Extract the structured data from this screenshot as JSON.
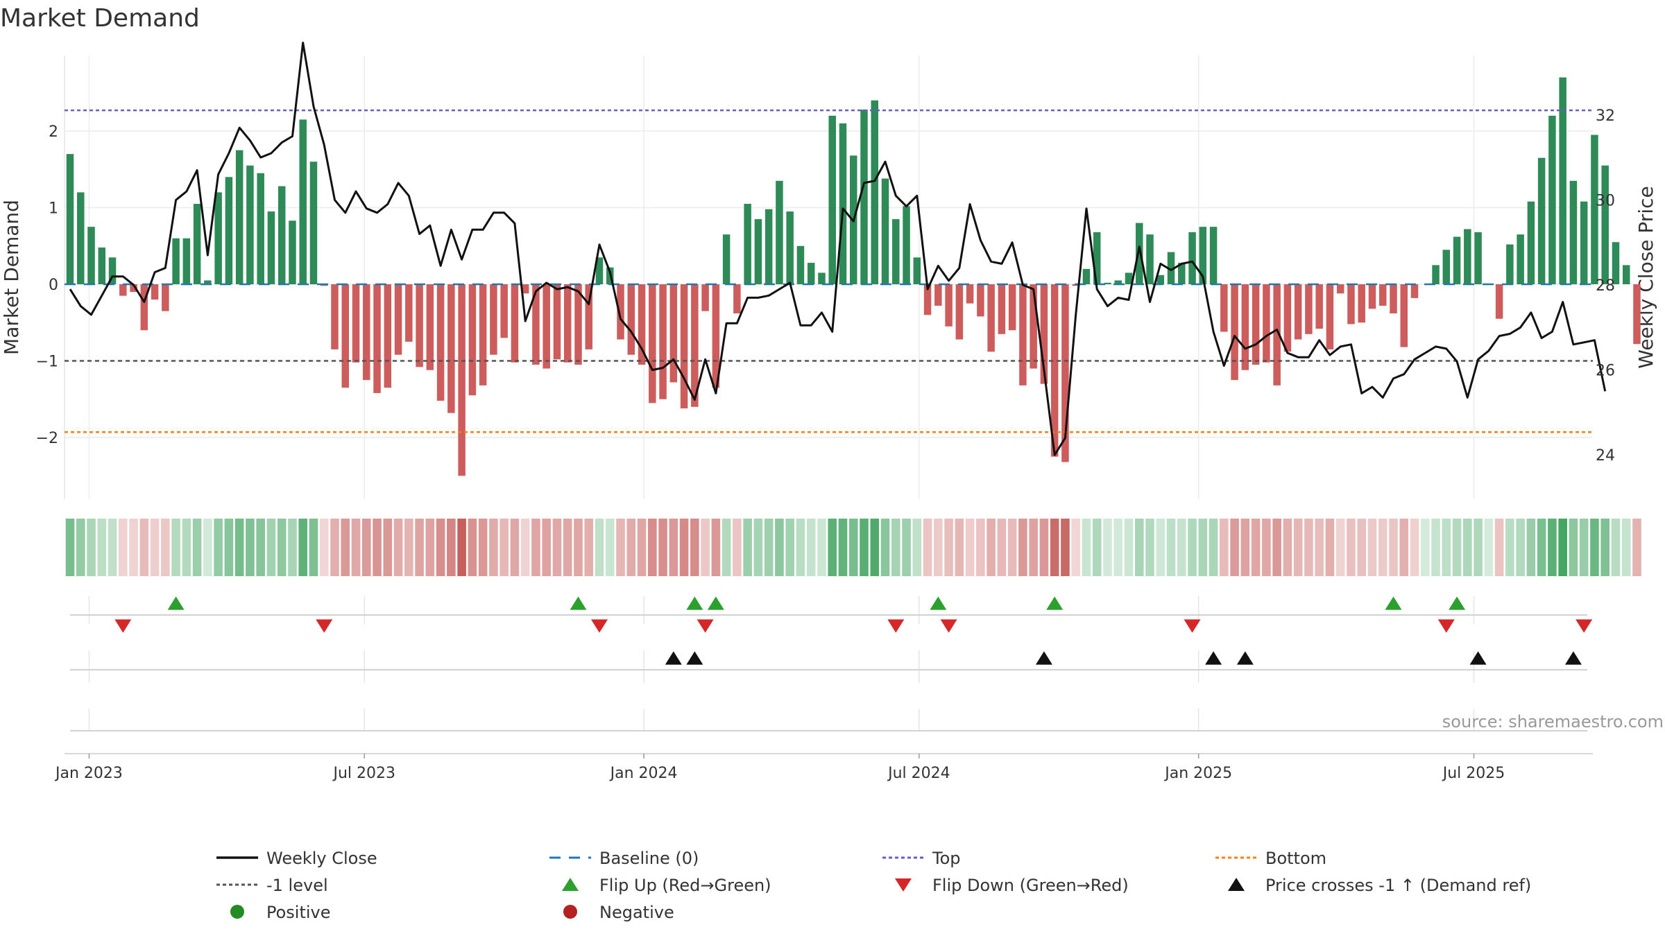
{
  "chart_data": {
    "type": "bar",
    "title": "Market Demand",
    "ylabel": "Market Demand",
    "ylabel_right": "Weekly Close Price",
    "ylim": [
      -2.8,
      2.9
    ],
    "ylim_right": [
      23.5,
      33.9
    ],
    "yticks": [
      "2",
      "1",
      "0",
      "−1",
      "−2"
    ],
    "yticks_values": [
      2,
      1,
      0,
      -1,
      -2
    ],
    "yticks_right": [
      "32",
      "30",
      "28",
      "26",
      "24"
    ],
    "yticks_right_values": [
      32,
      30,
      28,
      26,
      24
    ],
    "x_tick_labels": [
      "Jan 2023",
      "Jul 2023",
      "Jan 2024",
      "Jul 2024",
      "Jan 2025",
      "Jul 2025"
    ],
    "x_tick_weeks": [
      1.8,
      27.8,
      54.2,
      80.2,
      106.6,
      132.6
    ],
    "reference_lines": [
      {
        "name": "Baseline (0)",
        "value": 0,
        "color": "#1f77b4"
      },
      {
        "name": "Top",
        "value": 2.27,
        "color": "#6a5acd"
      },
      {
        "name": "-1 level",
        "value": -1,
        "color": "#555555"
      },
      {
        "name": "Bottom",
        "value": -1.93,
        "color": "#ff7f0e"
      }
    ],
    "demand": [
      1.7,
      1.2,
      0.75,
      0.48,
      0.35,
      -0.15,
      -0.1,
      -0.6,
      -0.2,
      -0.35,
      0.6,
      0.6,
      1.05,
      0.05,
      1.2,
      1.4,
      1.75,
      1.55,
      1.45,
      0.95,
      1.28,
      0.83,
      2.15,
      1.6,
      -0.02,
      -0.85,
      -1.35,
      -1.02,
      -1.25,
      -1.42,
      -1.35,
      -0.92,
      -0.75,
      -1.08,
      -1.12,
      -1.52,
      -1.68,
      -2.5,
      -1.45,
      -1.32,
      -0.92,
      -0.7,
      -1.02,
      -0.12,
      -1.05,
      -1.1,
      -0.98,
      -1.02,
      -1.05,
      -0.85,
      0.35,
      0.22,
      -0.72,
      -0.92,
      -1.05,
      -1.55,
      -1.5,
      -1.28,
      -1.62,
      -1.6,
      -0.35,
      -1.35,
      0.65,
      -0.38,
      1.05,
      0.85,
      0.98,
      1.35,
      0.95,
      0.5,
      0.28,
      0.15,
      2.2,
      2.1,
      1.68,
      2.28,
      2.4,
      1.38,
      0.85,
      1.02,
      0.35,
      -0.4,
      -0.28,
      -0.55,
      -0.72,
      -0.25,
      -0.42,
      -0.88,
      -0.65,
      -0.6,
      -1.32,
      -1.1,
      -1.3,
      -2.25,
      -2.32,
      -0.02,
      0.2,
      0.68,
      0.02,
      0.05,
      0.15,
      0.8,
      0.65,
      0.12,
      0.42,
      0.28,
      0.68,
      0.75,
      0.75,
      -0.62,
      -1.25,
      -1.12,
      -1.05,
      -1.02,
      -1.32,
      -0.88,
      -0.72,
      -0.65,
      -0.58,
      -0.85,
      -0.12,
      -0.52,
      -0.5,
      -0.32,
      -0.28,
      -0.38,
      -0.82,
      -0.18,
      0.0,
      0.25,
      0.45,
      0.62,
      0.72,
      0.68,
      0.0,
      -0.45,
      0.52,
      0.65,
      1.08,
      1.65,
      2.2,
      2.7,
      1.35,
      1.08,
      1.95,
      1.55,
      0.55,
      0.25,
      -0.78
    ],
    "close": [
      27.9,
      27.5,
      27.3,
      27.75,
      28.2,
      28.2,
      28.0,
      27.6,
      28.3,
      28.4,
      30.0,
      30.2,
      30.7,
      28.7,
      30.6,
      31.1,
      31.7,
      31.4,
      31.0,
      31.1,
      31.35,
      31.5,
      33.7,
      32.2,
      31.3,
      30.0,
      29.7,
      30.2,
      29.8,
      29.7,
      29.9,
      30.4,
      30.1,
      29.2,
      29.4,
      28.45,
      29.3,
      28.6,
      29.3,
      29.3,
      29.7,
      29.7,
      29.45,
      27.15,
      27.85,
      28.05,
      27.9,
      27.95,
      27.85,
      27.55,
      28.95,
      28.3,
      27.2,
      26.9,
      26.5,
      26.0,
      26.05,
      26.25,
      25.8,
      25.3,
      26.25,
      25.45,
      27.1,
      27.1,
      27.7,
      27.7,
      27.75,
      27.9,
      28.05,
      27.05,
      27.05,
      27.35,
      26.9,
      29.8,
      29.5,
      30.4,
      30.45,
      30.9,
      30.1,
      29.85,
      30.1,
      27.9,
      28.45,
      28.1,
      28.4,
      29.9,
      29.05,
      28.55,
      28.5,
      29.0,
      28.0,
      27.9,
      26.0,
      24.0,
      24.4,
      27.3,
      29.8,
      27.9,
      27.5,
      27.7,
      27.65,
      28.9,
      27.6,
      28.5,
      28.35,
      28.5,
      28.55,
      28.2,
      26.9,
      26.1,
      26.8,
      26.5,
      26.6,
      26.8,
      26.95,
      26.4,
      26.3,
      26.3,
      26.7,
      26.35,
      26.55,
      26.6,
      25.45,
      25.6,
      25.35,
      25.8,
      25.9,
      26.25,
      26.4,
      26.55,
      26.5,
      26.2,
      25.35,
      26.25,
      26.45,
      26.8,
      26.85,
      27.0,
      27.35,
      26.75,
      26.9,
      27.6,
      26.6,
      26.65,
      26.7,
      25.5
    ],
    "flip_up_weeks": [
      10,
      48,
      59,
      61,
      82,
      93,
      125,
      131
    ],
    "flip_down_weeks": [
      5,
      24,
      50,
      60,
      78,
      83,
      106,
      130,
      143
    ],
    "price_cross_weeks": [
      57,
      59,
      92,
      108,
      111,
      133,
      142
    ]
  },
  "legend": [
    {
      "label": "Weekly Close",
      "symbol": "solid-line",
      "color": "#111111"
    },
    {
      "label": "Baseline (0)",
      "symbol": "dashed-line",
      "color": "#1f77b4"
    },
    {
      "label": "Top",
      "symbol": "dotted-line",
      "color": "#6a5acd"
    },
    {
      "label": "Bottom",
      "symbol": "dotted-line",
      "color": "#ff7f0e"
    },
    {
      "label": "-1 level",
      "symbol": "dotted-line",
      "color": "#555555"
    },
    {
      "label": "Flip Up (Red→Green)",
      "symbol": "triangle-up",
      "color": "#2ca02c"
    },
    {
      "label": "Flip Down (Green→Red)",
      "symbol": "triangle-down",
      "color": "#d62728"
    },
    {
      "label": "Price crosses -1 ↑ (Demand ref)",
      "symbol": "triangle-up",
      "color": "#111111"
    },
    {
      "label": "Positive",
      "symbol": "circle",
      "color": "#228b22"
    },
    {
      "label": "Negative",
      "symbol": "circle",
      "color": "#b22222"
    }
  ],
  "colors": {
    "positive_bar": "#2e8b57",
    "negative_bar": "#cd5c5c",
    "strip_positive": "#3ba05a",
    "strip_negative": "#c0504d",
    "price_line": "#111111"
  },
  "source_note": "source: sharemaestro.com"
}
